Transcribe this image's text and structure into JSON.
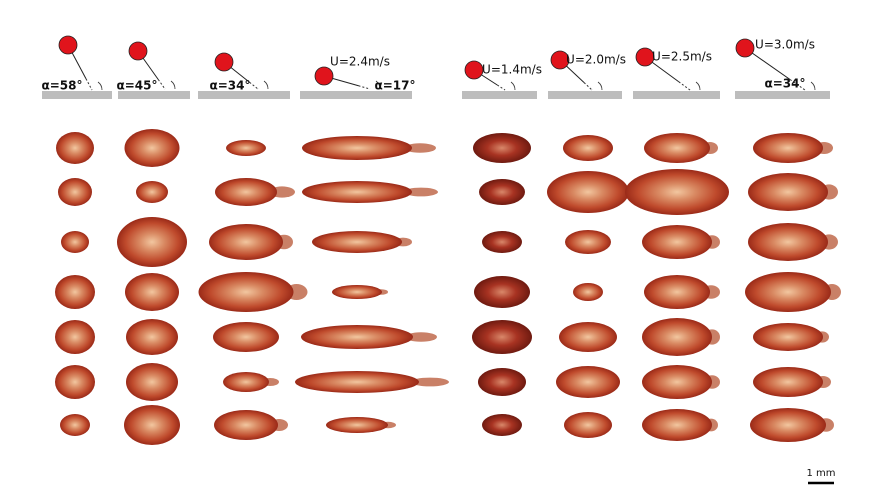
{
  "left_panel": {
    "headers": [
      {
        "angle": "α=58°"
      },
      {
        "angle": "α=45°"
      },
      {
        "angle": "α=34°"
      },
      {
        "speed": "U=2.4m/s",
        "angle": "α=17°"
      }
    ]
  },
  "right_panel": {
    "headers": [
      {
        "speed": "U=1.4m/s"
      },
      {
        "speed": "U=2.0m/s"
      },
      {
        "speed": "U=2.5m/s"
      },
      {
        "speed": "U=3.0m/s",
        "angle": "α=34°"
      }
    ]
  },
  "scale_bar": {
    "label": "1 mm"
  }
}
